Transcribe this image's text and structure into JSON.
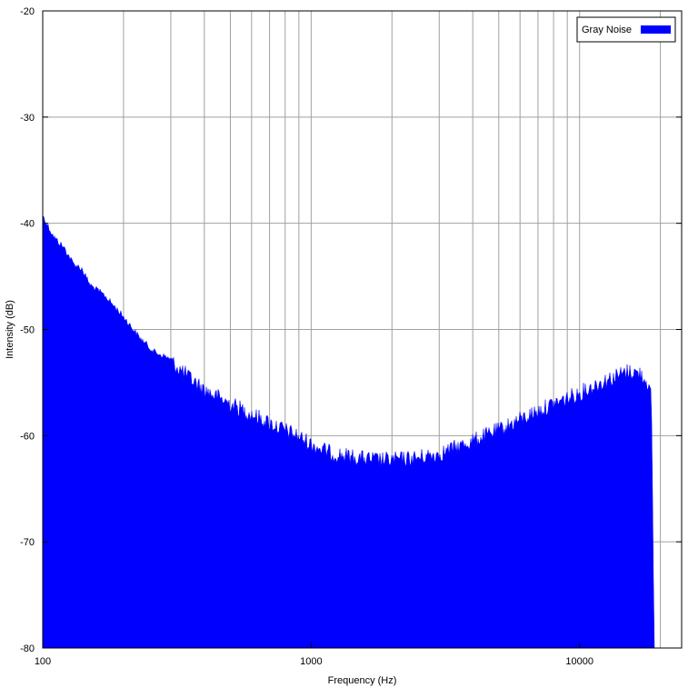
{
  "chart_data": {
    "type": "area",
    "title": "",
    "xlabel": "Frequency (Hz)",
    "ylabel": "Intensity (dB)",
    "x_scale": "log",
    "xlim": [
      100,
      24000
    ],
    "ylim": [
      -80,
      -20
    ],
    "x_ticks": [
      {
        "value": 100,
        "label": "100"
      },
      {
        "value": 1000,
        "label": "1000"
      },
      {
        "value": 10000,
        "label": "10000"
      }
    ],
    "y_ticks": [
      {
        "value": -20,
        "label": "-20"
      },
      {
        "value": -30,
        "label": "-30"
      },
      {
        "value": -40,
        "label": "-40"
      },
      {
        "value": -50,
        "label": "-50"
      },
      {
        "value": -60,
        "label": "-60"
      },
      {
        "value": -70,
        "label": "-70"
      },
      {
        "value": -80,
        "label": "-80"
      }
    ],
    "grid": true,
    "legend": {
      "position": "top-right"
    },
    "series": [
      {
        "name": "Gray Noise",
        "color": "#0000ff",
        "x": [
          100,
          110,
          120,
          130,
          140,
          150,
          170,
          200,
          230,
          260,
          300,
          350,
          400,
          500,
          600,
          700,
          800,
          900,
          1000,
          1100,
          1200,
          1400,
          1600,
          1800,
          2000,
          2500,
          3000,
          3500,
          4000,
          5000,
          6000,
          7000,
          8000,
          9000,
          10000,
          12000,
          14000,
          15000,
          16000,
          17000,
          18000,
          18500,
          19000
        ],
        "y": [
          -39,
          -41,
          -42,
          -43.5,
          -44,
          -45.5,
          -46.5,
          -48.5,
          -50.5,
          -51.8,
          -52.5,
          -54,
          -55.2,
          -56.5,
          -57.5,
          -58.3,
          -59,
          -59.6,
          -60.3,
          -60.8,
          -61.2,
          -61.5,
          -61.7,
          -61.8,
          -61.8,
          -61.6,
          -61.2,
          -60.6,
          -60,
          -59,
          -58,
          -57.2,
          -56.5,
          -56,
          -55.5,
          -54.5,
          -53.8,
          -53.5,
          -53.5,
          -53.8,
          -54.5,
          -56,
          -80
        ]
      }
    ]
  }
}
